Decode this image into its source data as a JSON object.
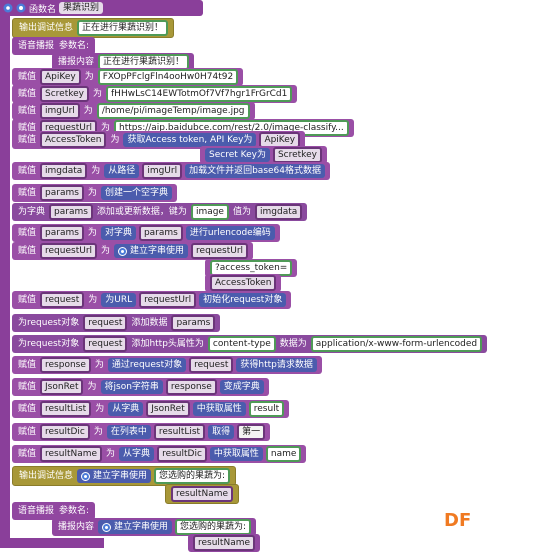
{
  "function": {
    "label": "函数名",
    "name": "果蔬识别"
  },
  "statements": [
    [
      [
        "输出调试信息",
        "正在进行果蔬识别！"
      ]
    ],
    [
      [
        "语音播报",
        "参数名:"
      ],
      [
        "播报内容",
        "正在进行果蔬识别！"
      ]
    ],
    [
      [
        "赋值",
        "ApiKey",
        "为",
        "FXOpPFclgFln4ooHw0H74t92"
      ]
    ],
    [
      [
        "赋值",
        "Scretkey",
        "为",
        "fHHwLsC14EWTotmOf7Vf7hgr1FrGrCd1"
      ]
    ],
    [
      [
        "赋值",
        "imgUrl",
        "为",
        "/home/pi/imageTemp/image.jpg"
      ]
    ],
    [
      [
        "赋值",
        "requestUrl",
        "为",
        "https://aip.baidubce.com/rest/2.0/image-classify..."
      ]
    ],
    [
      [
        "赋值",
        "AccessToken",
        "为",
        "获取Access token, API Key为",
        "ApiKey"
      ],
      [
        "Secret Key为",
        "Scretkey"
      ]
    ],
    [
      [
        "赋值",
        "imgdata",
        "为",
        "从路径",
        "imgUrl",
        "加载文件并返回base64格式数据"
      ]
    ],
    [
      [
        "赋值",
        "params",
        "为",
        "创建一个空字典"
      ]
    ],
    [
      [
        "为字典",
        "params",
        "添加或更新数据，键为",
        "image",
        "值为",
        "imgdata"
      ]
    ],
    [
      [
        "赋值",
        "params",
        "为",
        "对字典",
        "params",
        "进行urlencode编码"
      ]
    ],
    [
      [
        "赋值",
        "requestUrl",
        "为",
        "建立字串使用",
        "requestUrl"
      ],
      [
        "?access_token="
      ],
      [
        "AccessToken"
      ]
    ],
    [
      [
        "赋值",
        "request",
        "为",
        "为URL",
        "requestUrl",
        "初始化request对象"
      ]
    ],
    [
      [
        "为request对象",
        "request",
        "添加数据",
        "params"
      ]
    ],
    [
      [
        "为request对象",
        "request",
        "添加http头属性为",
        "content-type",
        "数据为",
        "application/x-www-form-urlencoded"
      ]
    ],
    [
      [
        "赋值",
        "response",
        "为",
        "通过request对象",
        "request",
        "获得http请求数据"
      ]
    ],
    [
      [
        "赋值",
        "JsonRet",
        "为",
        "将json字符串",
        "response",
        "变成字典"
      ]
    ],
    [
      [
        "赋值",
        "resultList",
        "为",
        "从字典",
        "JsonRet",
        "中获取属性",
        "result"
      ]
    ],
    [
      [
        "赋值",
        "resultDic",
        "为",
        "在列表中",
        "resultList",
        "取得",
        "第一"
      ]
    ],
    [
      [
        "赋值",
        "resultName",
        "为",
        "从字典",
        "resultDic",
        "中获取属性",
        "name"
      ]
    ],
    [
      [
        "输出调试信息",
        "建立字串使用",
        "您选购的果蔬为:"
      ],
      [
        "resultName"
      ]
    ],
    [
      [
        "语音播报",
        "参数名:"
      ],
      [
        "播报内容",
        "建立字串使用",
        "您选购的果蔬为:"
      ],
      [
        "resultName"
      ]
    ]
  ],
  "watermark": "DF"
}
